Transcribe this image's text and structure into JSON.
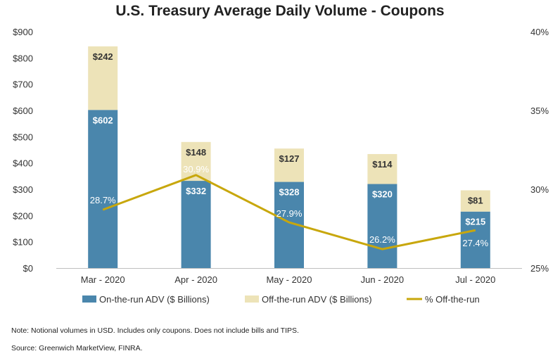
{
  "chart_data": {
    "type": "bar",
    "title": "U.S. Treasury Average Daily Volume - Coupons",
    "categories": [
      "Mar - 2020",
      "Apr - 2020",
      "May - 2020",
      "Jun - 2020",
      "Jul - 2020"
    ],
    "stacked": true,
    "y_ticks": [
      "$0",
      "$100",
      "$200",
      "$300",
      "$400",
      "$500",
      "$600",
      "$700",
      "$800",
      "$900"
    ],
    "y2_ticks": [
      "25%",
      "30%",
      "35%",
      "40%"
    ],
    "ylim": [
      0,
      900
    ],
    "y2lim": [
      25,
      40
    ],
    "legend_position": "bottom",
    "series": [
      {
        "name": "On-the-run ADV ($ Billions)",
        "kind": "bar",
        "color": "#4A86AC",
        "values": [
          602,
          332,
          328,
          320,
          215
        ],
        "labels": [
          "$602",
          "$332",
          "$328",
          "$320",
          "$215"
        ]
      },
      {
        "name": "Off-the-run ADV ($ Billions)",
        "kind": "bar",
        "color": "#EDE3B8",
        "values": [
          242,
          148,
          127,
          114,
          81
        ],
        "labels": [
          "$242",
          "$148",
          "$127",
          "$114",
          "$81"
        ]
      },
      {
        "name": "% Off-the-run",
        "kind": "line",
        "axis": "right",
        "color": "#C8A70C",
        "values": [
          28.7,
          30.9,
          27.9,
          26.2,
          27.4
        ],
        "labels": [
          "28.7%",
          "30.9%",
          "27.9%",
          "26.2%",
          "27.4%"
        ]
      }
    ]
  },
  "notes": {
    "note": "Note: Notional volumes in USD. Includes only coupons. Does not include bills and TIPS.",
    "source": "Source: Greenwich MarketView, FINRA."
  }
}
